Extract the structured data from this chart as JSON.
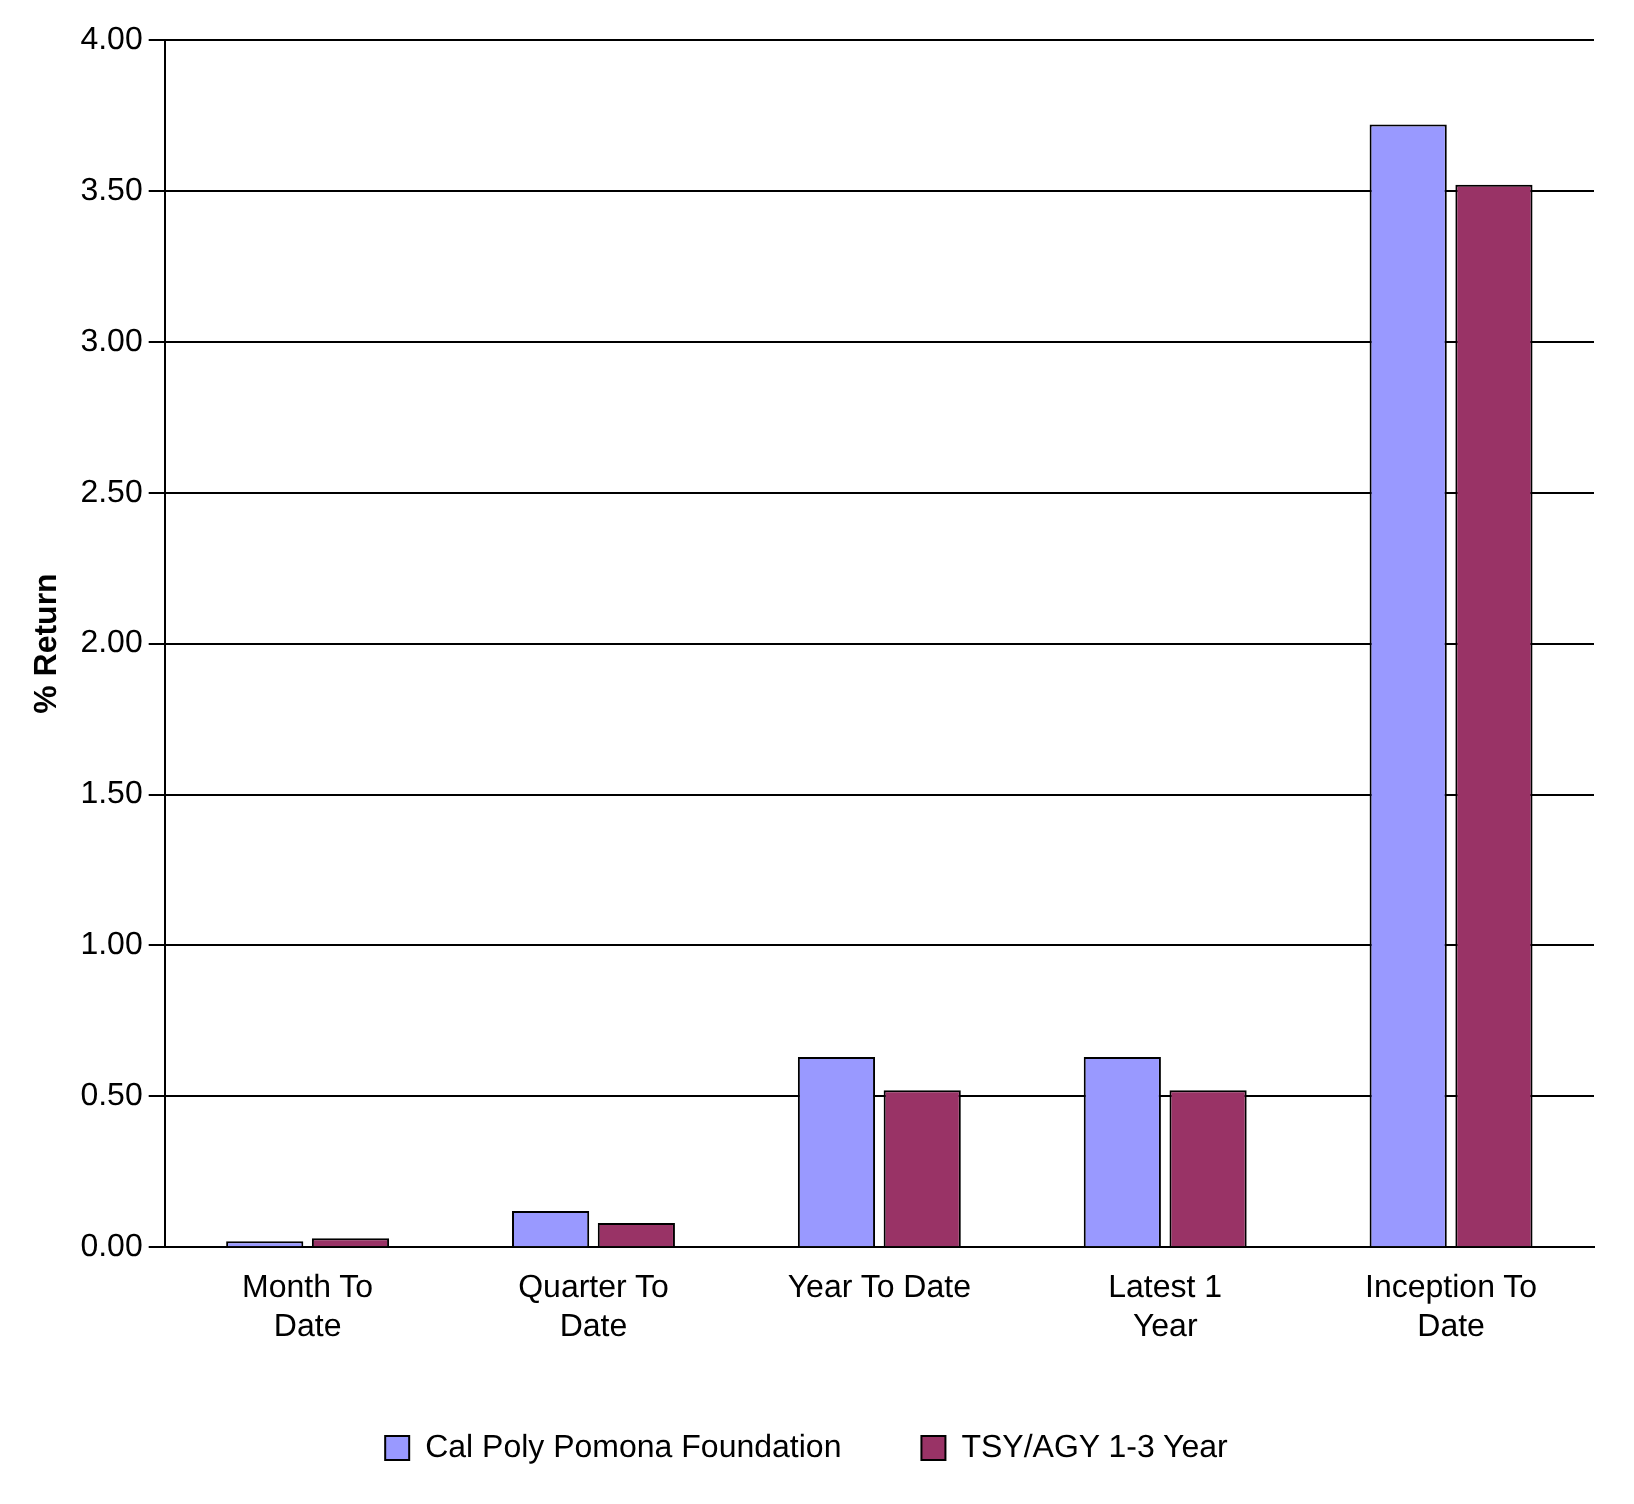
{
  "chart_data": {
    "type": "bar",
    "ylabel": "% Return",
    "categories": [
      [
        "Month To",
        "Date"
      ],
      [
        "Quarter To",
        "Date"
      ],
      [
        "Year To Date"
      ],
      [
        "Latest 1",
        "Year"
      ],
      [
        "Inception To",
        "Date"
      ]
    ],
    "series": [
      {
        "name": "Cal Poly Pomona Foundation",
        "color": "#9999ff",
        "values": [
          0.02,
          0.12,
          0.63,
          0.63,
          3.72
        ]
      },
      {
        "name": "TSY/AGY 1-3 Year",
        "color": "#993366",
        "values": [
          0.03,
          0.08,
          0.52,
          0.52,
          3.52
        ]
      }
    ],
    "ylim": [
      0,
      4
    ],
    "yticks": [
      {
        "value": 0,
        "label": "0.00"
      },
      {
        "value": 0.5,
        "label": "0.50"
      },
      {
        "value": 1,
        "label": "1.00"
      },
      {
        "value": 1.5,
        "label": "1.50"
      },
      {
        "value": 2,
        "label": "2.00"
      },
      {
        "value": 2.5,
        "label": "2.50"
      },
      {
        "value": 3,
        "label": "3.00"
      },
      {
        "value": 3.5,
        "label": "3.50"
      },
      {
        "value": 4,
        "label": "4.00"
      }
    ],
    "grid": "y",
    "legend": "bottom"
  }
}
